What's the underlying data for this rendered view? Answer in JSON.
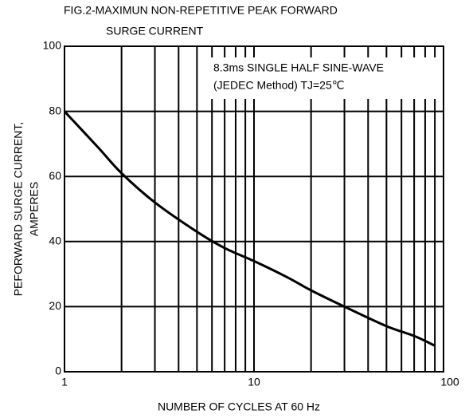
{
  "chart_data": {
    "type": "line",
    "title": [
      "FIG.2-MAXIMUN NON-REPETITIVE PEAK FORWARD",
      "SURGE CURRENT"
    ],
    "annotation": [
      "8.3ms SINGLE HALF SINE-WAVE",
      "(JEDEC Method)  TJ=25℃"
    ],
    "xlabel": "NUMBER OF CYCLES AT 60 Hz",
    "ylabel": [
      "PEFORWARD SURGE CURRENT,",
      "AMPERES"
    ],
    "x": [
      1,
      1.5,
      2,
      3,
      5,
      7,
      10,
      15,
      20,
      30,
      50,
      70,
      90
    ],
    "values": [
      80,
      69,
      61,
      52,
      43,
      38,
      34,
      29,
      25,
      20,
      14,
      11,
      8
    ],
    "color": "#000000",
    "xscale": "log",
    "xlim": [
      1,
      100
    ],
    "xticks": [
      1,
      10,
      100
    ],
    "xminor_ticks": [
      2,
      3,
      4,
      5,
      6,
      7,
      8,
      9,
      20,
      30,
      40,
      50,
      60,
      70,
      80,
      90
    ],
    "ylim": [
      0,
      100
    ],
    "yticks": [
      0,
      20,
      40,
      60,
      80,
      100
    ],
    "grid": true
  }
}
